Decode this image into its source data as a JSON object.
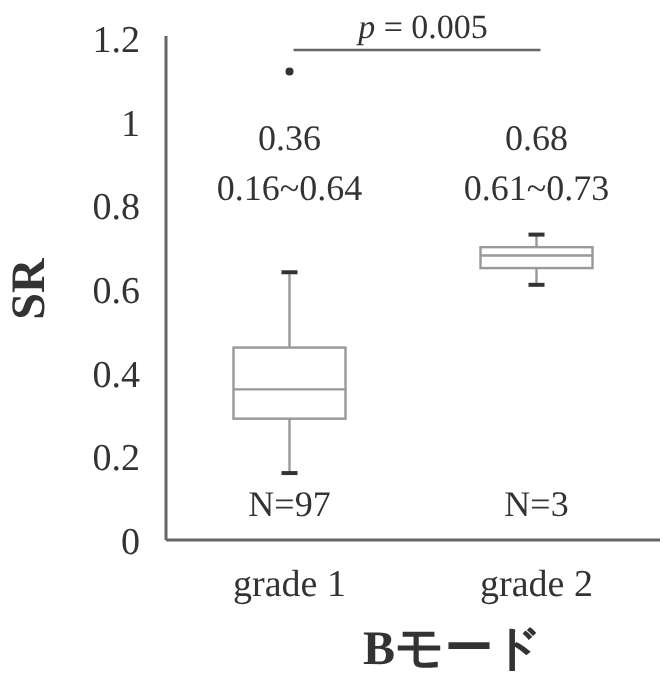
{
  "chart_data": {
    "type": "box",
    "categories": [
      "grade 1",
      "grade 2"
    ],
    "boxes": [
      {
        "low": 0.16,
        "q1": 0.29,
        "median": 0.36,
        "q3": 0.46,
        "high": 0.64,
        "outliers": [
          1.12
        ]
      },
      {
        "low": 0.61,
        "q1": 0.65,
        "median": 0.68,
        "q3": 0.7,
        "high": 0.73
      }
    ],
    "color": "#999999",
    "ylim": [
      0,
      1.2
    ],
    "yticks": [
      0,
      0.2,
      0.4,
      0.6,
      0.8,
      1,
      1.2
    ],
    "xlabel": "Bモード",
    "ylabel": "SR",
    "grid": false,
    "annotations": [
      "p = 0.005",
      "0.36",
      "0.16~0.64",
      "N=97",
      "0.68",
      "0.61~0.73",
      "N=3"
    ]
  }
}
